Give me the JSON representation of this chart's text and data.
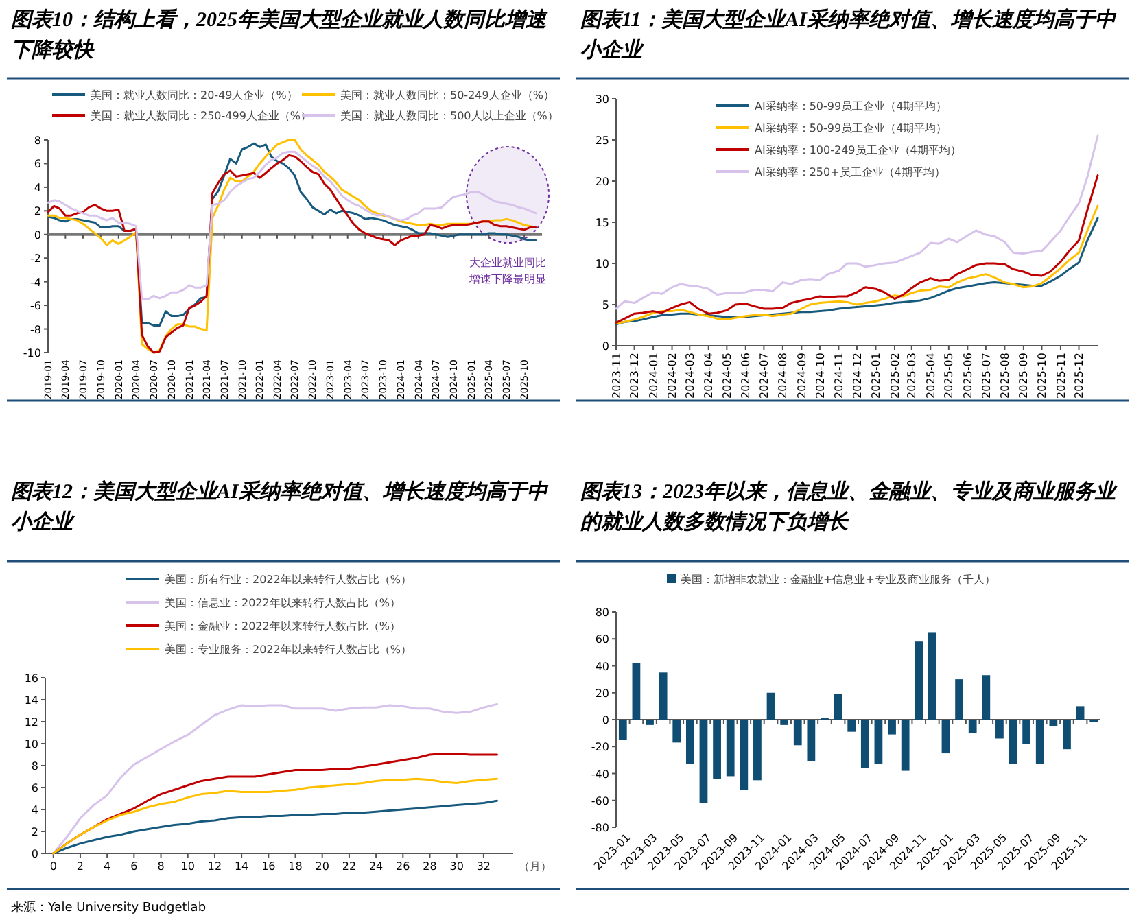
{
  "chart_data": [
    {
      "type": "line",
      "title": "图表10：结构上看，2025年美国大型企业就业人数同比增速下降较快",
      "legend": "top",
      "ylim": [
        -10,
        8
      ],
      "yticks": [
        -10,
        -8,
        -6,
        -4,
        -2,
        0,
        2,
        4,
        6,
        8
      ],
      "xlim": [
        "2019-01",
        "2026-01"
      ],
      "xticks": [
        "2019-01",
        "2019-04",
        "2019-07",
        "2019-10",
        "2020-01",
        "2020-04",
        "2020-07",
        "2020-10",
        "2021-01",
        "2021-04",
        "2021-07",
        "2021-10",
        "2022-01",
        "2022-04",
        "2022-07",
        "2022-10",
        "2023-01",
        "2023-04",
        "2023-07",
        "2023-10",
        "2024-01",
        "2024-04",
        "2024-07",
        "2024-10",
        "2025-01",
        "2025-04",
        "2025-07",
        "2025-10"
      ],
      "x": [
        "2019-01",
        "2019-02",
        "2019-03",
        "2019-04",
        "2019-05",
        "2019-06",
        "2019-07",
        "2019-08",
        "2019-09",
        "2019-10",
        "2019-11",
        "2019-12",
        "2020-01",
        "2020-02",
        "2020-03",
        "2020-04",
        "2020-05",
        "2020-06",
        "2020-07",
        "2020-08",
        "2020-09",
        "2020-10",
        "2020-11",
        "2020-12",
        "2021-01",
        "2021-02",
        "2021-03",
        "2021-04",
        "2021-05",
        "2021-06",
        "2021-07",
        "2021-08",
        "2021-09",
        "2021-10",
        "2021-11",
        "2021-12",
        "2022-01",
        "2022-02",
        "2022-03",
        "2022-04",
        "2022-05",
        "2022-06",
        "2022-07",
        "2022-08",
        "2022-09",
        "2022-10",
        "2022-11",
        "2022-12",
        "2023-01",
        "2023-02",
        "2023-03",
        "2023-04",
        "2023-05",
        "2023-06",
        "2023-07",
        "2023-08",
        "2023-09",
        "2023-10",
        "2023-11",
        "2023-12",
        "2024-01",
        "2024-02",
        "2024-03",
        "2024-04",
        "2024-05",
        "2024-06",
        "2024-07",
        "2024-08",
        "2024-09",
        "2024-10",
        "2024-11",
        "2024-12",
        "2025-01",
        "2025-02",
        "2025-03",
        "2025-04",
        "2025-05",
        "2025-06",
        "2025-07",
        "2025-08",
        "2025-09",
        "2025-10",
        "2025-11",
        "2025-12"
      ],
      "series": [
        {
          "name": "美国：就业人数同比：20-49人企业（%）",
          "color": "#175a7e",
          "values": [
            1.5,
            1.4,
            1.2,
            1.1,
            1.3,
            1.3,
            1.2,
            1.1,
            1.0,
            0.6,
            0.6,
            0.7,
            0.7,
            0.3,
            0.3,
            0.4,
            -7.5,
            -7.5,
            -7.7,
            -7.7,
            -6.5,
            -6.9,
            -6.9,
            -6.8,
            -6.3,
            -5.9,
            -5.4,
            -5.3,
            3.0,
            3.7,
            5.0,
            6.4,
            6.0,
            7.2,
            7.4,
            7.7,
            7.4,
            7.6,
            6.6,
            6.2,
            6.0,
            5.6,
            5.0,
            3.6,
            3.0,
            2.3,
            2.0,
            1.7,
            2.1,
            1.8,
            2.0,
            1.9,
            1.8,
            1.6,
            1.3,
            1.4,
            1.3,
            1.2,
            1.0,
            0.8,
            0.7,
            0.6,
            0.4,
            0.1,
            0.1,
            0.1,
            0.0,
            -0.1,
            -0.2,
            -0.1,
            0.0,
            0.0,
            0.0,
            0.0,
            0.0,
            0.1,
            0.1,
            0.0,
            0.0,
            -0.1,
            -0.2,
            -0.4,
            -0.5,
            -0.5
          ]
        },
        {
          "name": "美国：就业人数同比：50-249人企业（%）",
          "color": "#ffc000",
          "values": [
            1.6,
            1.6,
            1.4,
            1.4,
            1.3,
            1.2,
            0.9,
            0.5,
            0.1,
            -0.3,
            -0.9,
            -0.5,
            -0.8,
            -0.5,
            -0.2,
            0.2,
            -9.3,
            -9.7,
            -10.0,
            -9.8,
            -8.6,
            -8.0,
            -7.6,
            -7.6,
            -7.8,
            -7.8,
            -8.0,
            -8.1,
            1.4,
            2.5,
            3.8,
            4.8,
            4.5,
            4.5,
            4.9,
            5.3,
            6.0,
            6.6,
            7.1,
            7.6,
            7.8,
            8.0,
            8.0,
            7.2,
            6.7,
            6.3,
            5.9,
            5.3,
            4.9,
            4.4,
            3.8,
            3.5,
            3.2,
            2.9,
            2.4,
            2.0,
            1.8,
            1.6,
            1.5,
            1.3,
            1.1,
            1.0,
            0.9,
            0.8,
            0.8,
            0.9,
            0.8,
            0.8,
            0.9,
            0.9,
            0.9,
            0.9,
            0.9,
            1.0,
            1.1,
            1.1,
            1.2,
            1.2,
            1.3,
            1.2,
            1.0,
            0.8,
            0.7,
            0.6
          ]
        },
        {
          "name": "美国：就业人数同比：250-499人企业（%）",
          "color": "#c00000",
          "values": [
            1.9,
            2.4,
            2.2,
            1.6,
            1.6,
            1.8,
            1.9,
            2.3,
            2.5,
            2.2,
            2.0,
            2.0,
            2.1,
            0.3,
            0.3,
            0.5,
            -8.5,
            -9.5,
            -10.0,
            -9.9,
            -8.7,
            -8.3,
            -7.9,
            -7.7,
            -6.2,
            -6.0,
            -5.7,
            -5.2,
            3.5,
            4.4,
            5.1,
            5.4,
            4.9,
            5.0,
            5.1,
            5.2,
            4.8,
            5.2,
            5.6,
            6.0,
            6.3,
            6.7,
            6.6,
            6.2,
            5.7,
            5.3,
            5.1,
            4.3,
            3.8,
            3.0,
            2.3,
            1.6,
            0.9,
            0.4,
            0.1,
            -0.1,
            -0.3,
            -0.4,
            -0.5,
            -0.9,
            -0.5,
            -0.3,
            -0.1,
            -0.1,
            0.0,
            0.8,
            0.7,
            0.5,
            0.7,
            0.8,
            0.8,
            0.8,
            0.9,
            1.0,
            1.1,
            1.1,
            0.8,
            0.7,
            0.7,
            0.6,
            0.5,
            0.4,
            0.6,
            0.6
          ]
        },
        {
          "name": "美国：就业人数同比：500人以上企业（%）",
          "color": "#d6c2ea",
          "values": [
            2.7,
            2.9,
            2.8,
            2.5,
            2.2,
            2.0,
            1.8,
            1.6,
            1.6,
            1.4,
            1.2,
            1.4,
            1.0,
            1.0,
            0.9,
            0.7,
            -5.5,
            -5.5,
            -5.2,
            -5.4,
            -5.2,
            -4.9,
            -4.9,
            -4.7,
            -4.3,
            -4.5,
            -4.5,
            -4.3,
            2.5,
            2.6,
            2.9,
            3.6,
            4.1,
            4.4,
            4.7,
            4.8,
            5.3,
            5.9,
            6.3,
            6.5,
            6.9,
            7.0,
            7.0,
            6.6,
            6.2,
            5.8,
            5.5,
            4.9,
            4.5,
            3.9,
            3.3,
            2.9,
            2.6,
            2.4,
            2.1,
            1.8,
            1.6,
            1.7,
            1.5,
            1.3,
            1.2,
            1.3,
            1.6,
            1.8,
            2.2,
            2.2,
            2.2,
            2.3,
            2.8,
            3.2,
            3.3,
            3.4,
            3.6,
            3.6,
            3.4,
            3.1,
            2.8,
            2.7,
            2.6,
            2.5,
            2.3,
            2.2,
            2.0,
            1.8
          ]
        }
      ],
      "annotations": [
        "大企业就业同比增速下降最明显"
      ]
    },
    {
      "type": "line",
      "title": "图表11：美国大型企业AI采纳率绝对值、增长速度均高于中小企业",
      "legend": "top left",
      "ylim": [
        0,
        30
      ],
      "yticks": [
        0,
        5,
        10,
        15,
        20,
        25,
        30
      ],
      "xlim": [
        "2023-11",
        "2026-01"
      ],
      "xticks": [
        "2023-11",
        "2023-12",
        "2024-01",
        "2024-02",
        "2024-03",
        "2024-04",
        "2024-05",
        "2024-06",
        "2024-07",
        "2024-08",
        "2024-09",
        "2024-10",
        "2024-11",
        "2024-12",
        "2025-01",
        "2025-02",
        "2025-03",
        "2025-04",
        "2025-05",
        "2025-06",
        "2025-07",
        "2025-08",
        "2025-09",
        "2025-10",
        "2025-11",
        "2025-12"
      ],
      "x": [
        "2023-11-01",
        "2023-11-15",
        "2023-12-01",
        "2023-12-15",
        "2024-01-01",
        "2024-01-15",
        "2024-02-01",
        "2024-02-15",
        "2024-03-01",
        "2024-03-15",
        "2024-04-01",
        "2024-04-15",
        "2024-05-01",
        "2024-05-15",
        "2024-06-01",
        "2024-06-15",
        "2024-07-01",
        "2024-07-15",
        "2024-08-01",
        "2024-08-15",
        "2024-09-01",
        "2024-09-15",
        "2024-10-01",
        "2024-10-15",
        "2024-11-01",
        "2024-11-15",
        "2024-12-01",
        "2024-12-15",
        "2025-01-01",
        "2025-01-15",
        "2025-02-01",
        "2025-02-15",
        "2025-03-01",
        "2025-03-15",
        "2025-04-01",
        "2025-04-15",
        "2025-05-01",
        "2025-05-15",
        "2025-06-01",
        "2025-06-15",
        "2025-07-01",
        "2025-07-15",
        "2025-08-01",
        "2025-08-15",
        "2025-09-01",
        "2025-09-15",
        "2025-10-01",
        "2025-10-15",
        "2025-11-01",
        "2025-11-15",
        "2025-12-01",
        "2025-12-15",
        "2026-01-01"
      ],
      "series": [
        {
          "name": "AI采纳率：50-99员工企业（4期平均）",
          "color": "#175a7e",
          "values": [
            2.6,
            2.9,
            3.0,
            3.2,
            3.5,
            3.7,
            3.8,
            3.9,
            3.9,
            3.8,
            3.7,
            3.6,
            3.5,
            3.5,
            3.5,
            3.6,
            3.7,
            3.8,
            3.9,
            4.0,
            4.1,
            4.1,
            4.2,
            4.3,
            4.5,
            4.6,
            4.7,
            4.8,
            4.9,
            5.0,
            5.2,
            5.3,
            5.4,
            5.5,
            5.8,
            6.2,
            6.7,
            7.0,
            7.2,
            7.4,
            7.6,
            7.7,
            7.6,
            7.5,
            7.4,
            7.3,
            7.3,
            7.8,
            8.5,
            9.3,
            10.1,
            12.8,
            15.5
          ]
        },
        {
          "name": "AI采纳率：50-99员工企业（4期平均）",
          "color": "#ffc000",
          "values": [
            2.7,
            2.9,
            3.2,
            3.5,
            4.0,
            4.2,
            4.2,
            4.4,
            4.1,
            3.8,
            3.6,
            3.3,
            3.2,
            3.4,
            3.6,
            3.7,
            3.8,
            3.6,
            3.8,
            3.9,
            4.5,
            5.0,
            5.2,
            5.3,
            5.4,
            5.3,
            5.0,
            5.2,
            5.4,
            5.7,
            6.1,
            6.0,
            6.4,
            6.7,
            6.8,
            7.2,
            7.1,
            7.7,
            8.2,
            8.4,
            8.7,
            8.3,
            7.7,
            7.5,
            7.1,
            7.2,
            7.6,
            8.4,
            9.4,
            10.4,
            11.3,
            14.0,
            17.0
          ]
        },
        {
          "name": "AI采纳率：100-249员工企业（4期平均）",
          "color": "#c00000",
          "values": [
            2.8,
            3.3,
            3.9,
            4.0,
            4.2,
            4.0,
            4.6,
            5.0,
            5.3,
            4.5,
            3.9,
            4.0,
            4.3,
            5.0,
            5.1,
            4.8,
            4.5,
            4.5,
            4.6,
            5.2,
            5.5,
            5.7,
            6.0,
            5.9,
            6.0,
            6.0,
            6.5,
            7.1,
            6.9,
            6.5,
            5.7,
            6.2,
            7.0,
            7.7,
            8.2,
            7.9,
            8.0,
            8.7,
            9.3,
            9.8,
            10.0,
            10.0,
            9.9,
            9.3,
            9.0,
            8.6,
            8.5,
            9.0,
            10.2,
            11.5,
            12.8,
            16.5,
            20.7
          ]
        },
        {
          "name": "AI采纳率：250+员工企业（4期平均）",
          "color": "#d6c2ea",
          "values": [
            4.5,
            5.4,
            5.2,
            5.8,
            6.5,
            6.3,
            7.1,
            7.5,
            7.3,
            7.2,
            6.9,
            6.2,
            6.4,
            6.4,
            6.5,
            6.8,
            6.8,
            6.6,
            7.7,
            7.5,
            8.0,
            8.1,
            8.0,
            8.7,
            9.1,
            10.0,
            10.0,
            9.6,
            9.8,
            10.0,
            10.1,
            10.5,
            10.9,
            11.3,
            12.5,
            12.4,
            13.0,
            12.6,
            13.4,
            14.0,
            13.5,
            13.3,
            12.6,
            11.3,
            11.2,
            11.4,
            11.5,
            12.6,
            14.0,
            15.6,
            17.3,
            20.5,
            25.5
          ]
        }
      ]
    },
    {
      "type": "line",
      "title": "图表12：美国大型企业AI采纳率绝对值、增长速度均高于中小企业",
      "legend": "top",
      "xlabel": "（月）",
      "ylim": [
        0,
        16
      ],
      "yticks": [
        0,
        2,
        4,
        6,
        8,
        10,
        12,
        14,
        16
      ],
      "xlim": [
        -0.6,
        34.2
      ],
      "xticks": [
        0,
        2,
        4,
        6,
        8,
        10,
        12,
        14,
        16,
        18,
        20,
        22,
        24,
        26,
        28,
        30,
        32
      ],
      "x": [
        0,
        1,
        2,
        3,
        4,
        5,
        6,
        7,
        8,
        9,
        10,
        11,
        12,
        13,
        14,
        15,
        16,
        17,
        18,
        19,
        20,
        21,
        22,
        23,
        24,
        25,
        26,
        27,
        28,
        29,
        30,
        31,
        32,
        33
      ],
      "series": [
        {
          "name": "美国：所有行业：2022年以来转行人数占比（%）",
          "color": "#175a7e",
          "values": [
            0,
            0.5,
            0.9,
            1.2,
            1.5,
            1.7,
            2.0,
            2.2,
            2.4,
            2.6,
            2.7,
            2.9,
            3.0,
            3.2,
            3.3,
            3.3,
            3.4,
            3.4,
            3.5,
            3.5,
            3.6,
            3.6,
            3.7,
            3.7,
            3.8,
            3.9,
            4.0,
            4.1,
            4.2,
            4.3,
            4.4,
            4.5,
            4.6,
            4.8
          ]
        },
        {
          "name": "美国：信息业：2022年以来转行人数占比（%）",
          "color": "#d6c2ea",
          "values": [
            0,
            1.5,
            3.2,
            4.4,
            5.3,
            6.9,
            8.1,
            8.8,
            9.5,
            10.2,
            10.8,
            11.7,
            12.6,
            13.1,
            13.5,
            13.4,
            13.5,
            13.5,
            13.2,
            13.2,
            13.2,
            13.0,
            13.2,
            13.3,
            13.3,
            13.5,
            13.4,
            13.2,
            13.2,
            12.9,
            12.8,
            12.9,
            13.3,
            13.6
          ]
        },
        {
          "name": "美国：金融业：2022年以来转行人数占比（%）",
          "color": "#c00000",
          "values": [
            0,
            0.9,
            1.7,
            2.4,
            3.1,
            3.6,
            4.1,
            4.8,
            5.4,
            5.8,
            6.2,
            6.6,
            6.8,
            7.0,
            7.0,
            7.0,
            7.2,
            7.4,
            7.6,
            7.6,
            7.6,
            7.7,
            7.7,
            7.9,
            8.1,
            8.3,
            8.5,
            8.7,
            9.0,
            9.1,
            9.1,
            9.0,
            9.0,
            9.0
          ]
        },
        {
          "name": "美国：专业服务：2022年以来转行人数占比（%）",
          "color": "#ffc000",
          "values": [
            0,
            0.9,
            1.7,
            2.4,
            3.0,
            3.5,
            3.8,
            4.2,
            4.5,
            4.7,
            5.1,
            5.4,
            5.5,
            5.7,
            5.6,
            5.6,
            5.6,
            5.7,
            5.8,
            6.0,
            6.1,
            6.2,
            6.3,
            6.4,
            6.6,
            6.7,
            6.7,
            6.8,
            6.7,
            6.5,
            6.4,
            6.6,
            6.7,
            6.8
          ]
        }
      ],
      "annotations": [
        "来源：Yale University Budgetlab"
      ]
    },
    {
      "type": "bar",
      "title": "图表13：2023年以来，信息业、金融业、专业及商业服务业的就业人数多数情况下负增长",
      "legend": "top",
      "ylim": [
        -80,
        80
      ],
      "yticks": [
        -80,
        -60,
        -40,
        -20,
        0,
        20,
        40,
        60,
        80
      ],
      "categories": [
        "2023-01",
        null,
        "2023-03",
        null,
        "2023-05",
        null,
        "2023-07",
        null,
        "2023-09",
        null,
        "2023-11",
        null,
        "2024-01",
        null,
        "2024-03",
        null,
        "2024-05",
        null,
        "2024-07",
        null,
        "2024-09",
        null,
        "2024-11",
        null,
        "2025-01",
        null,
        "2025-03",
        null,
        "2025-05",
        null,
        "2025-07",
        null,
        "2025-09",
        null,
        "2025-11",
        null
      ],
      "series": [
        {
          "name": "美国：新增非农就业：金融业+信息业+专业及商业服务（千人）",
          "color": "#0f4d73",
          "values": [
            -15,
            42,
            -4,
            35,
            -17,
            -33,
            -62,
            -44,
            -42,
            -52,
            -45,
            20,
            -4,
            -19,
            -31,
            1,
            19,
            -9,
            -36,
            -33,
            -11,
            -38,
            58,
            65,
            -25,
            30,
            -10,
            33,
            -14,
            -33,
            -18,
            -33,
            -5,
            -22,
            10,
            -2
          ]
        }
      ]
    }
  ]
}
